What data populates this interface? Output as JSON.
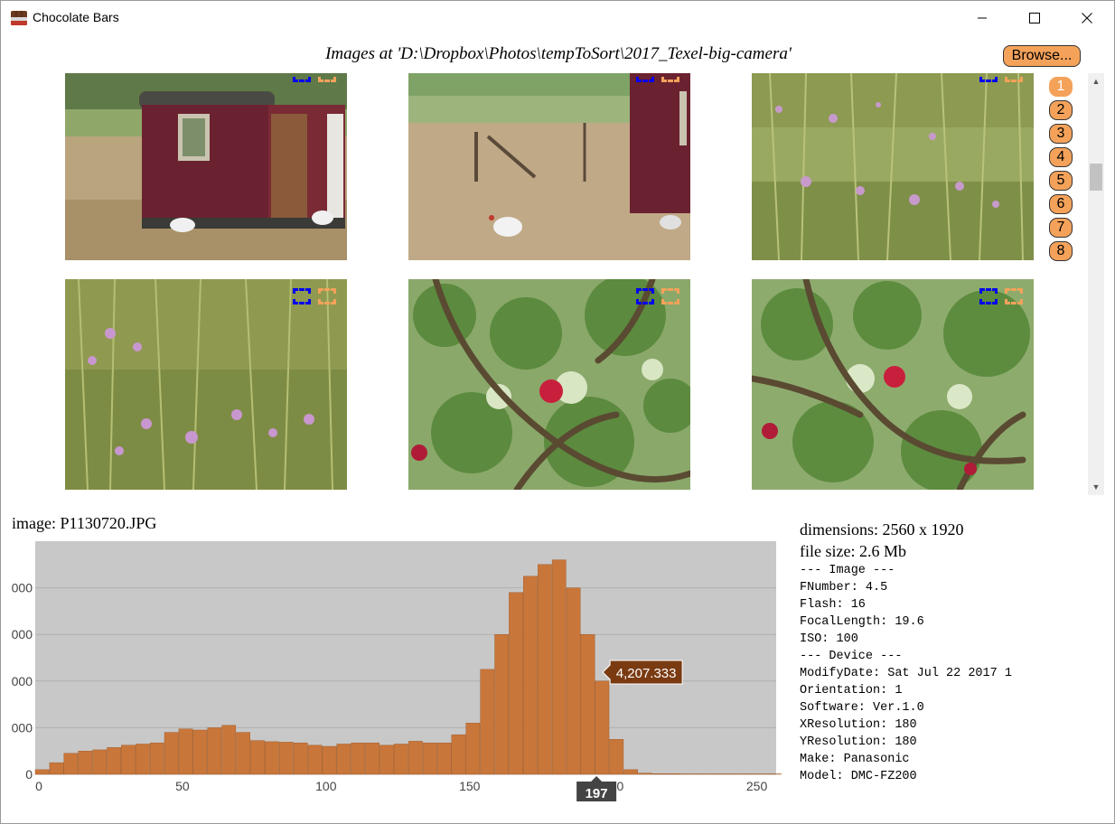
{
  "window": {
    "title": "Chocolate Bars",
    "app_icon": "chocolate-bar-icon",
    "controls": [
      "minimize-icon",
      "maximize-icon",
      "close-icon"
    ]
  },
  "header": {
    "path_text": "Images at 'D:\\Dropbox\\Photos\\tempToSort\\2017_Texel-big-camera'",
    "browse_label": "Browse..."
  },
  "gallery": {
    "thumbnails": [
      {
        "subject": "trailer",
        "selected_blue": true,
        "selected_orange": true
      },
      {
        "subject": "trailer-chicken",
        "selected_blue": true,
        "selected_orange": true
      },
      {
        "subject": "meadow",
        "selected_blue": true,
        "selected_orange": true
      },
      {
        "subject": "meadow",
        "selected_blue": true,
        "selected_orange": true
      },
      {
        "subject": "apple-tree",
        "selected_blue": true,
        "selected_orange": true
      },
      {
        "subject": "apple-tree",
        "selected_blue": true,
        "selected_orange": true
      }
    ],
    "pages": [
      "1",
      "2",
      "3",
      "4",
      "5",
      "6",
      "7",
      "8"
    ],
    "active_page": "1"
  },
  "selected_image": {
    "name_text": "image: P1130720.JPG"
  },
  "info": {
    "dimensions": "dimensions: 2560 x 1920",
    "file_size": "file size: 2.6 Mb",
    "lines": [
      "--- Image ---",
      "FNumber: 4.5",
      "Flash: 16",
      "FocalLength: 19.6",
      "ISO: 100",
      "--- Device ---",
      "ModifyDate: Sat Jul 22 2017 1",
      "Orientation: 1",
      "Software: Ver.1.0",
      "XResolution: 180",
      "YResolution: 180",
      "Make: Panasonic",
      "Model: DMC-FZ200"
    ]
  },
  "colors": {
    "accent": "#f4a25a",
    "bar": "#c8763a",
    "plot_bg": "#c8c8c8",
    "tooltip_bg": "#7a3b12"
  },
  "chart_data": {
    "type": "bar",
    "x": [
      0,
      5,
      10,
      15,
      20,
      25,
      30,
      35,
      40,
      45,
      50,
      55,
      60,
      65,
      70,
      75,
      80,
      85,
      90,
      95,
      100,
      105,
      110,
      115,
      120,
      125,
      130,
      135,
      140,
      145,
      150,
      155,
      160,
      165,
      170,
      175,
      180,
      185,
      190,
      195,
      200,
      205,
      210,
      215,
      220,
      225,
      230,
      235,
      240,
      245,
      250,
      255
    ],
    "values": [
      200,
      500,
      900,
      1000,
      1050,
      1150,
      1250,
      1300,
      1350,
      1800,
      1950,
      1900,
      2000,
      2100,
      1800,
      1450,
      1400,
      1380,
      1350,
      1250,
      1200,
      1300,
      1350,
      1350,
      1250,
      1300,
      1420,
      1350,
      1350,
      1700,
      2200,
      4500,
      6000,
      7800,
      8500,
      9000,
      9200,
      8000,
      6000,
      4000,
      1500,
      200,
      50,
      30,
      30,
      20,
      20,
      20,
      20,
      20,
      20,
      20
    ],
    "xlim": [
      0,
      258
    ],
    "x_ticks": [
      "0",
      "50",
      "100",
      "150",
      "200",
      "250"
    ],
    "y_ticks_partial": [
      "000",
      "000",
      "000",
      "000",
      "0"
    ],
    "hover_label": "4,207.333",
    "hover_x_label": "197",
    "grid": true
  }
}
